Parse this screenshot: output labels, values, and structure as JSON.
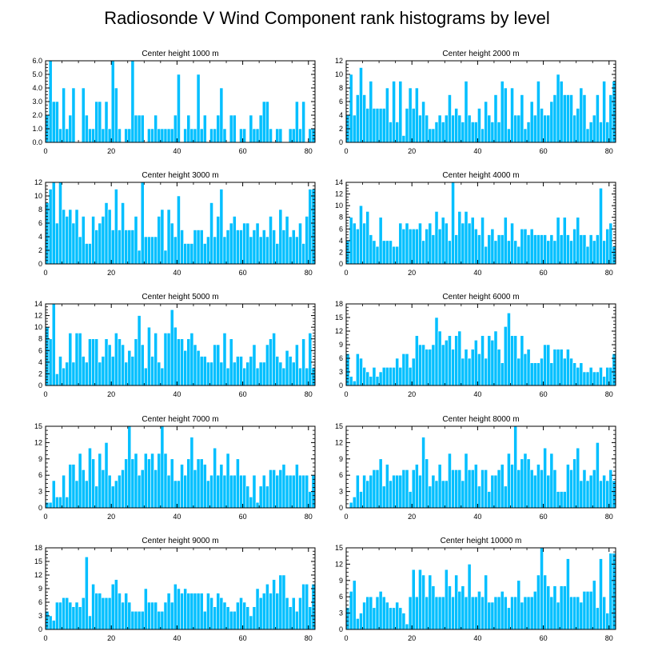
{
  "figure_title": "Radiosonde V Wind Component rank histograms by level",
  "colors": {
    "bar": "#00bfff",
    "bar_edge": "#ffffff",
    "axis": "#000000"
  },
  "chart_data": [
    {
      "type": "bar",
      "title": "Center height 1000 m",
      "xlim": [
        0,
        82
      ],
      "xticks": [
        0,
        20,
        40,
        60,
        80
      ],
      "ylim": [
        0,
        6
      ],
      "yticks": [
        0,
        1,
        2,
        3,
        4,
        5,
        6
      ],
      "ytick_labels": [
        "0.0",
        "1.0",
        "2.0",
        "3.0",
        "4.0",
        "5.0",
        "6.0"
      ],
      "values": [
        2,
        6,
        3,
        3,
        1,
        4,
        1,
        2,
        4,
        0,
        0,
        4,
        2,
        1,
        1,
        3,
        3,
        1,
        3,
        1,
        6,
        4,
        1,
        0,
        1,
        1,
        6,
        2,
        2,
        2,
        0,
        1,
        1,
        2,
        1,
        1,
        1,
        1,
        1,
        2,
        5,
        0,
        1,
        2,
        1,
        1,
        5,
        1,
        2,
        0,
        1,
        1,
        2,
        4,
        1,
        0,
        2,
        2,
        0,
        1,
        1,
        0,
        2,
        1,
        1,
        2,
        3,
        3,
        1,
        0,
        1,
        1,
        0,
        0,
        1,
        1,
        3,
        1,
        3,
        0,
        1,
        1
      ]
    },
    {
      "type": "bar",
      "title": "Center height 2000 m",
      "xlim": [
        0,
        82
      ],
      "xticks": [
        0,
        20,
        40,
        60,
        80
      ],
      "ylim": [
        0,
        12
      ],
      "yticks": [
        0,
        2,
        4,
        6,
        8,
        10,
        12
      ],
      "values": [
        4,
        10,
        4,
        7,
        11,
        7,
        5,
        9,
        5,
        5,
        5,
        5,
        8,
        3,
        9,
        3,
        9,
        1,
        5,
        8,
        5,
        8,
        4,
        6,
        4,
        2,
        2,
        3,
        4,
        3,
        4,
        7,
        4,
        5,
        4,
        3,
        9,
        4,
        3,
        3,
        5,
        2,
        6,
        4,
        3,
        7,
        3,
        9,
        8,
        2,
        8,
        4,
        4,
        7,
        2,
        3,
        6,
        4,
        9,
        5,
        4,
        4,
        6,
        7,
        10,
        9,
        7,
        7,
        7,
        4,
        5,
        8,
        7,
        2,
        3,
        4,
        7,
        3,
        9,
        3,
        7,
        9
      ]
    },
    {
      "type": "bar",
      "title": "Center height 3000 m",
      "xlim": [
        0,
        82
      ],
      "xticks": [
        0,
        20,
        40,
        60,
        80
      ],
      "ylim": [
        0,
        12
      ],
      "yticks": [
        0,
        2,
        4,
        6,
        8,
        10,
        12
      ],
      "values": [
        9,
        11,
        12,
        6,
        12,
        8,
        7,
        8,
        6,
        8,
        4,
        7,
        3,
        3,
        7,
        5,
        6,
        7,
        9,
        8,
        5,
        11,
        5,
        9,
        5,
        5,
        5,
        7,
        2,
        12,
        4,
        4,
        4,
        4,
        7,
        8,
        2,
        8,
        6,
        4,
        10,
        5,
        3,
        3,
        3,
        5,
        5,
        5,
        3,
        4,
        9,
        4,
        7,
        11,
        4,
        5,
        6,
        7,
        5,
        5,
        6,
        6,
        4,
        5,
        6,
        4,
        5,
        4,
        7,
        5,
        3,
        8,
        5,
        7,
        4,
        5,
        4,
        6,
        3,
        7,
        11,
        11
      ]
    },
    {
      "type": "bar",
      "title": "Center height 4000 m",
      "xlim": [
        0,
        82
      ],
      "xticks": [
        0,
        20,
        40,
        60,
        80
      ],
      "ylim": [
        0,
        14
      ],
      "yticks": [
        0,
        2,
        4,
        6,
        8,
        10,
        12,
        14
      ],
      "values": [
        4,
        8,
        7,
        6,
        10,
        7,
        9,
        5,
        4,
        3,
        8,
        4,
        4,
        4,
        3,
        3,
        7,
        6,
        7,
        6,
        6,
        6,
        7,
        4,
        6,
        7,
        5,
        9,
        6,
        8,
        7,
        4,
        14,
        5,
        9,
        7,
        9,
        7,
        8,
        6,
        5,
        8,
        3,
        5,
        6,
        4,
        5,
        5,
        8,
        4,
        7,
        4,
        3,
        6,
        6,
        5,
        6,
        5,
        5,
        5,
        5,
        4,
        5,
        4,
        8,
        5,
        8,
        5,
        4,
        6,
        8,
        5,
        5,
        3,
        5,
        4,
        5,
        13,
        4,
        6,
        7,
        3
      ]
    },
    {
      "type": "bar",
      "title": "Center height 5000 m",
      "xlim": [
        0,
        82
      ],
      "xticks": [
        0,
        20,
        40,
        60,
        80
      ],
      "ylim": [
        0,
        14
      ],
      "yticks": [
        0,
        2,
        4,
        6,
        8,
        10,
        12,
        14
      ],
      "values": [
        10,
        8,
        14,
        2,
        5,
        3,
        4,
        9,
        4,
        9,
        9,
        5,
        4,
        8,
        8,
        8,
        4,
        5,
        8,
        7,
        5,
        9,
        8,
        7,
        4,
        6,
        5,
        8,
        12,
        7,
        3,
        10,
        5,
        9,
        4,
        3,
        9,
        9,
        13,
        10,
        8,
        8,
        6,
        8,
        9,
        7,
        6,
        5,
        5,
        4,
        4,
        7,
        7,
        4,
        9,
        3,
        8,
        4,
        5,
        5,
        3,
        4,
        5,
        7,
        3,
        4,
        4,
        7,
        8,
        9,
        5,
        4,
        3,
        6,
        5,
        4,
        7,
        3,
        8,
        3,
        9,
        3
      ]
    },
    {
      "type": "bar",
      "title": "Center height 6000 m",
      "xlim": [
        0,
        82
      ],
      "xticks": [
        0,
        20,
        40,
        60,
        80
      ],
      "ylim": [
        0,
        18
      ],
      "yticks": [
        0,
        3,
        6,
        9,
        12,
        15,
        18
      ],
      "values": [
        7,
        2,
        1,
        7,
        6,
        4,
        3,
        2,
        4,
        2,
        3,
        4,
        4,
        4,
        4,
        6,
        4,
        7,
        7,
        4,
        6,
        11,
        9,
        9,
        8,
        8,
        9,
        15,
        12,
        9,
        10,
        11,
        8,
        11,
        12,
        6,
        8,
        6,
        8,
        10,
        7,
        11,
        6,
        11,
        10,
        12,
        8,
        5,
        13,
        16,
        11,
        11,
        6,
        11,
        7,
        8,
        5,
        5,
        5,
        6,
        9,
        9,
        5,
        8,
        8,
        8,
        6,
        8,
        6,
        5,
        4,
        5,
        3,
        3,
        4,
        3,
        3,
        4,
        2,
        4,
        4,
        7
      ]
    },
    {
      "type": "bar",
      "title": "Center height 7000 m",
      "xlim": [
        0,
        82
      ],
      "xticks": [
        0,
        20,
        40,
        60,
        80
      ],
      "ylim": [
        0,
        15
      ],
      "yticks": [
        0,
        3,
        6,
        9,
        12,
        15
      ],
      "values": [
        1,
        1,
        5,
        2,
        2,
        6,
        2,
        8,
        8,
        5,
        10,
        7,
        5,
        11,
        9,
        4,
        10,
        7,
        12,
        6,
        4,
        5,
        6,
        7,
        9,
        15,
        9,
        10,
        6,
        7,
        10,
        9,
        10,
        7,
        10,
        15,
        10,
        6,
        9,
        5,
        5,
        8,
        6,
        9,
        13,
        7,
        9,
        9,
        8,
        5,
        6,
        11,
        6,
        8,
        6,
        10,
        6,
        6,
        9,
        6,
        6,
        4,
        2,
        6,
        1,
        4,
        6,
        4,
        7,
        7,
        6,
        7,
        8,
        6,
        6,
        6,
        8,
        6,
        6,
        6,
        3,
        6
      ]
    },
    {
      "type": "bar",
      "title": "Center height 8000 m",
      "xlim": [
        0,
        82
      ],
      "xticks": [
        0,
        20,
        40,
        60,
        80
      ],
      "ylim": [
        0,
        15
      ],
      "yticks": [
        0,
        3,
        6,
        9,
        12,
        15
      ],
      "values": [
        0,
        1,
        2,
        6,
        3,
        6,
        5,
        6,
        7,
        7,
        9,
        4,
        8,
        5,
        6,
        6,
        6,
        7,
        7,
        3,
        7,
        8,
        6,
        13,
        9,
        4,
        6,
        5,
        8,
        5,
        5,
        10,
        7,
        7,
        7,
        5,
        10,
        7,
        7,
        8,
        4,
        7,
        7,
        3,
        6,
        6,
        7,
        8,
        4,
        10,
        8,
        15,
        7,
        9,
        10,
        9,
        7,
        6,
        8,
        7,
        11,
        6,
        10,
        7,
        3,
        3,
        3,
        8,
        7,
        9,
        11,
        5,
        7,
        5,
        6,
        7,
        12,
        5,
        6,
        5,
        7,
        5
      ]
    },
    {
      "type": "bar",
      "title": "Center height 9000 m",
      "xlim": [
        0,
        82
      ],
      "xticks": [
        0,
        20,
        40,
        60,
        80
      ],
      "ylim": [
        0,
        18
      ],
      "yticks": [
        0,
        3,
        6,
        9,
        12,
        15,
        18
      ],
      "values": [
        4,
        3,
        2,
        6,
        6,
        7,
        7,
        6,
        5,
        6,
        5,
        7,
        16,
        3,
        10,
        8,
        8,
        7,
        7,
        7,
        10,
        11,
        8,
        6,
        8,
        6,
        4,
        4,
        4,
        4,
        9,
        6,
        6,
        6,
        4,
        4,
        6,
        8,
        6,
        10,
        9,
        8,
        9,
        8,
        8,
        8,
        8,
        8,
        4,
        8,
        7,
        5,
        8,
        7,
        6,
        5,
        4,
        4,
        6,
        7,
        6,
        5,
        3,
        5,
        9,
        7,
        8,
        10,
        8,
        11,
        8,
        12,
        12,
        7,
        5,
        7,
        4,
        7,
        10,
        10,
        5,
        10
      ]
    },
    {
      "type": "bar",
      "title": "Center height 10000 m",
      "xlim": [
        0,
        82
      ],
      "xticks": [
        0,
        20,
        40,
        60,
        80
      ],
      "ylim": [
        0,
        15
      ],
      "yticks": [
        0,
        3,
        6,
        9,
        12,
        15
      ],
      "values": [
        4,
        7,
        9,
        2,
        3,
        5,
        6,
        6,
        4,
        6,
        7,
        6,
        5,
        4,
        4,
        5,
        4,
        3,
        1,
        6,
        11,
        6,
        11,
        10,
        6,
        10,
        8,
        6,
        6,
        6,
        11,
        8,
        6,
        10,
        7,
        8,
        6,
        12,
        6,
        6,
        7,
        6,
        10,
        5,
        5,
        6,
        6,
        7,
        6,
        4,
        6,
        6,
        9,
        5,
        6,
        6,
        6,
        7,
        10,
        15,
        10,
        8,
        6,
        8,
        5,
        8,
        8,
        13,
        6,
        6,
        6,
        5,
        7,
        7,
        7,
        9,
        4,
        13,
        6,
        3,
        14,
        14
      ]
    }
  ]
}
